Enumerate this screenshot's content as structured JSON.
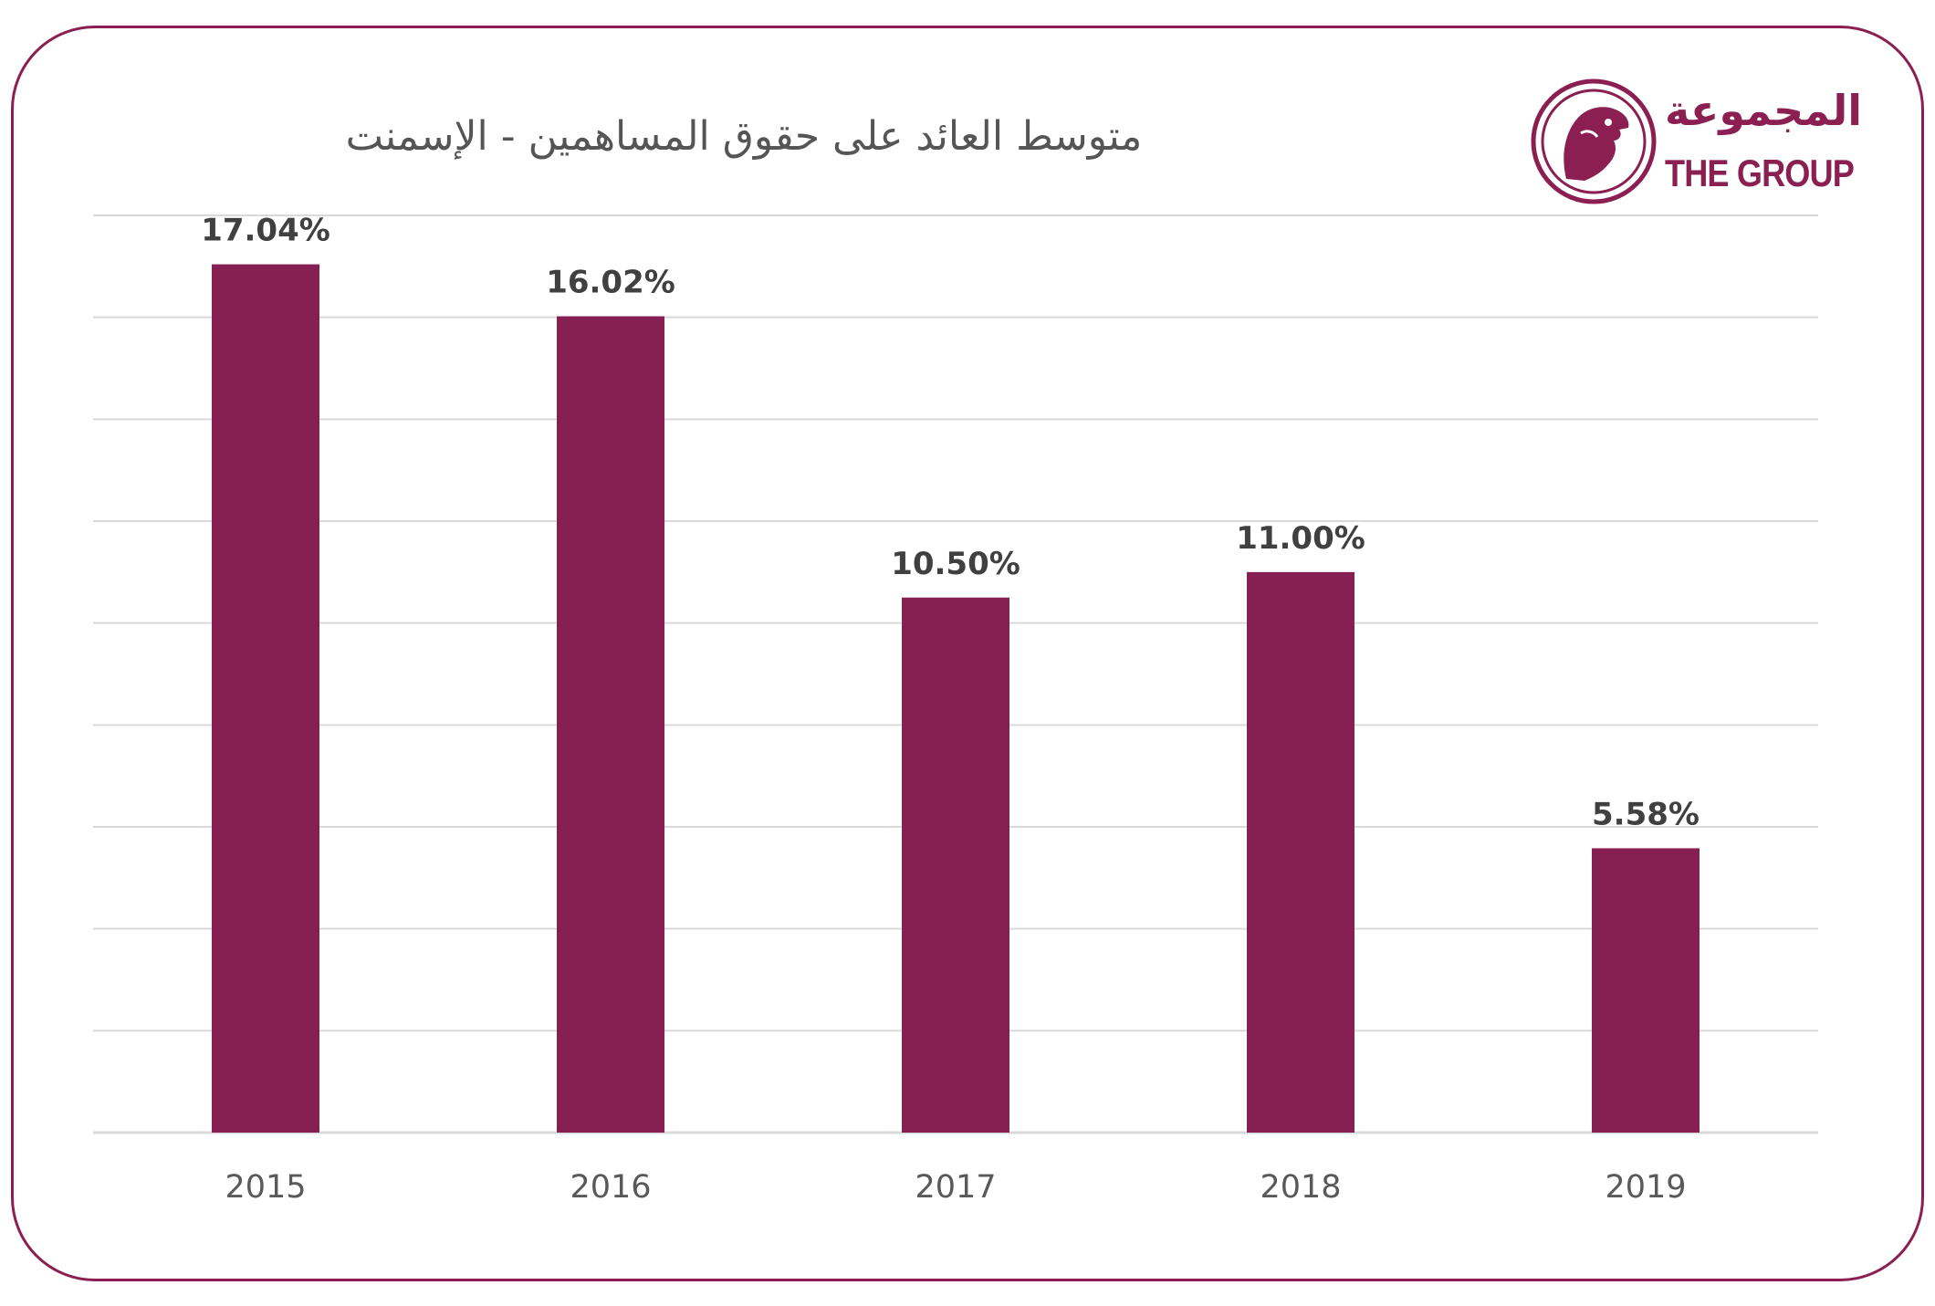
{
  "title": "متوسط العائد على حقوق المساهمين - الإسمنت",
  "logo": {
    "arabic": "المجموعة",
    "english": "THE GROUP"
  },
  "colors": {
    "bar": "#861f52",
    "border": "#8b1f52",
    "grid": "#d9d9d9",
    "label": "#404040",
    "tick": "#595959"
  },
  "chart_data": {
    "type": "bar",
    "title": "متوسط العائد على حقوق المساهمين - الإسمنت",
    "categories": [
      "2015",
      "2016",
      "2017",
      "2018",
      "2019"
    ],
    "values": [
      17.04,
      16.02,
      10.5,
      11.0,
      5.58
    ],
    "value_labels": [
      "17.04%",
      "16.02%",
      "10.50%",
      "11.00%",
      "5.58%"
    ],
    "ylim": [
      0,
      18
    ],
    "gridlines": true,
    "legend": "none"
  }
}
